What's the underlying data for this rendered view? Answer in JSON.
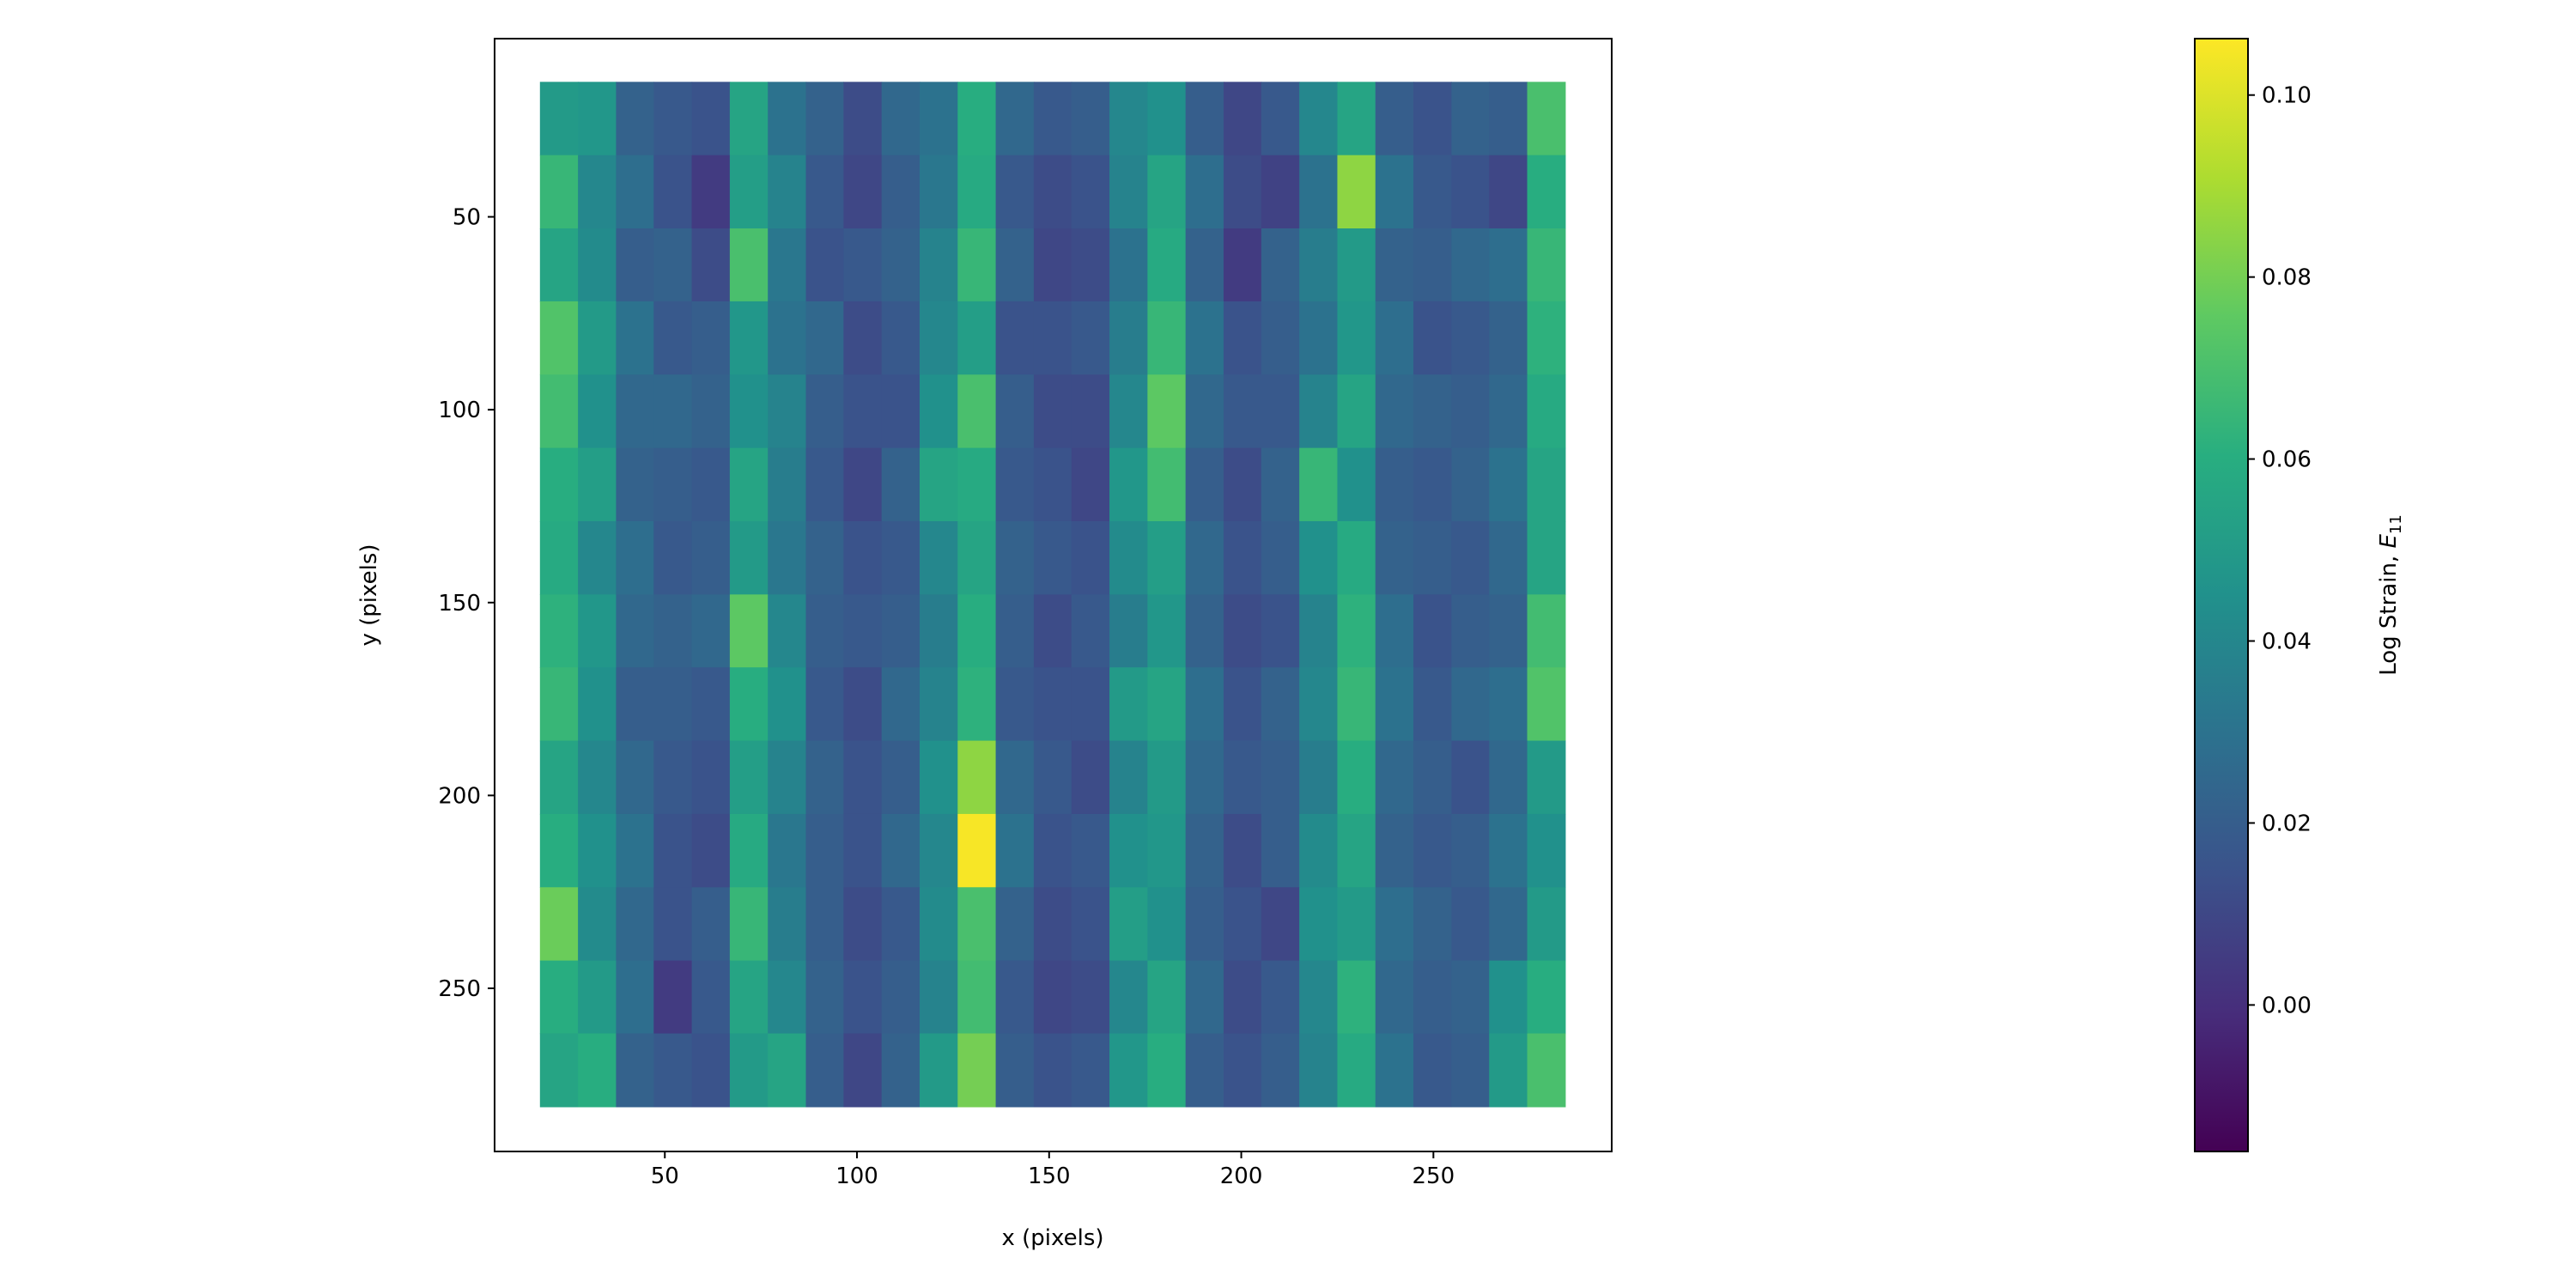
{
  "chart_data": {
    "type": "heatmap",
    "xlabel": "x (pixels)",
    "ylabel": "y (pixels)",
    "colorbar_label": "Log Strain, ",
    "colorbar_label_symbol": "E",
    "colorbar_label_subscript": "11",
    "colormap": "viridis",
    "xlim": [
      5.7,
      296.4
    ],
    "ylim": [
      292.3,
      3.8
    ],
    "xticks": [
      50,
      100,
      150,
      200,
      250
    ],
    "yticks": [
      50,
      100,
      150,
      200,
      250
    ],
    "clim": [
      -0.0161,
      0.1062
    ],
    "cticks": [
      {
        "value": 0,
        "label": "0.00"
      },
      {
        "value": 0.02,
        "label": "0.02"
      },
      {
        "value": 0.04,
        "label": "0.04"
      },
      {
        "value": 0.06,
        "label": "0.06"
      },
      {
        "value": 0.08,
        "label": "0.08"
      },
      {
        "value": 0.1,
        "label": "0.10"
      }
    ],
    "xbins": [
      17.5,
      27.4,
      37.3,
      47.1,
      57.0,
      66.9,
      76.8,
      86.7,
      96.5,
      106.4,
      116.3,
      126.2,
      136.1,
      146.0,
      155.8,
      165.7,
      175.6,
      185.5,
      195.4,
      205.2,
      215.1,
      225.0,
      234.9,
      244.8,
      254.7,
      264.5,
      274.4,
      284.3
    ],
    "ybins": [
      15,
      34,
      53,
      71.9,
      90.9,
      109.9,
      128.9,
      147.9,
      166.8,
      185.8,
      204.8,
      223.8,
      242.8,
      261.7,
      280.7
    ],
    "z": [
      [
        0.05,
        0.048,
        0.022,
        0.018,
        0.015,
        0.055,
        0.03,
        0.022,
        0.012,
        0.025,
        0.03,
        0.06,
        0.025,
        0.018,
        0.02,
        0.04,
        0.045,
        0.02,
        0.01,
        0.018,
        0.04,
        0.055,
        0.02,
        0.015,
        0.022,
        0.02,
        0.07
      ],
      [
        0.065,
        0.04,
        0.028,
        0.015,
        0.005,
        0.052,
        0.038,
        0.018,
        0.01,
        0.02,
        0.032,
        0.058,
        0.018,
        0.012,
        0.015,
        0.038,
        0.055,
        0.028,
        0.012,
        0.008,
        0.03,
        0.085,
        0.03,
        0.018,
        0.015,
        0.01,
        0.06
      ],
      [
        0.055,
        0.042,
        0.02,
        0.022,
        0.012,
        0.07,
        0.032,
        0.015,
        0.018,
        0.022,
        0.038,
        0.065,
        0.022,
        0.01,
        0.012,
        0.03,
        0.058,
        0.022,
        0.005,
        0.022,
        0.035,
        0.05,
        0.022,
        0.02,
        0.025,
        0.028,
        0.065
      ],
      [
        0.072,
        0.05,
        0.03,
        0.018,
        0.02,
        0.048,
        0.03,
        0.025,
        0.012,
        0.018,
        0.04,
        0.052,
        0.015,
        0.015,
        0.018,
        0.035,
        0.065,
        0.03,
        0.015,
        0.02,
        0.03,
        0.048,
        0.028,
        0.015,
        0.018,
        0.022,
        0.062
      ],
      [
        0.068,
        0.045,
        0.025,
        0.025,
        0.022,
        0.045,
        0.038,
        0.02,
        0.015,
        0.015,
        0.045,
        0.07,
        0.02,
        0.012,
        0.012,
        0.04,
        0.075,
        0.025,
        0.018,
        0.018,
        0.038,
        0.055,
        0.025,
        0.022,
        0.02,
        0.025,
        0.058
      ],
      [
        0.06,
        0.052,
        0.022,
        0.02,
        0.018,
        0.055,
        0.035,
        0.018,
        0.01,
        0.022,
        0.055,
        0.058,
        0.018,
        0.015,
        0.01,
        0.048,
        0.068,
        0.02,
        0.012,
        0.022,
        0.065,
        0.045,
        0.02,
        0.018,
        0.022,
        0.03,
        0.055
      ],
      [
        0.058,
        0.04,
        0.028,
        0.018,
        0.02,
        0.05,
        0.032,
        0.022,
        0.015,
        0.018,
        0.04,
        0.055,
        0.022,
        0.018,
        0.015,
        0.042,
        0.052,
        0.025,
        0.015,
        0.02,
        0.045,
        0.058,
        0.022,
        0.02,
        0.018,
        0.025,
        0.055
      ],
      [
        0.062,
        0.048,
        0.025,
        0.022,
        0.025,
        0.075,
        0.04,
        0.02,
        0.018,
        0.02,
        0.035,
        0.06,
        0.02,
        0.012,
        0.018,
        0.035,
        0.048,
        0.022,
        0.012,
        0.015,
        0.038,
        0.062,
        0.028,
        0.015,
        0.02,
        0.022,
        0.068
      ],
      [
        0.065,
        0.045,
        0.02,
        0.02,
        0.018,
        0.06,
        0.045,
        0.018,
        0.012,
        0.025,
        0.038,
        0.062,
        0.018,
        0.015,
        0.015,
        0.05,
        0.055,
        0.028,
        0.015,
        0.022,
        0.04,
        0.065,
        0.03,
        0.018,
        0.025,
        0.028,
        0.072
      ],
      [
        0.055,
        0.04,
        0.025,
        0.018,
        0.015,
        0.052,
        0.038,
        0.022,
        0.015,
        0.02,
        0.045,
        0.085,
        0.025,
        0.018,
        0.012,
        0.038,
        0.05,
        0.025,
        0.018,
        0.02,
        0.035,
        0.06,
        0.025,
        0.02,
        0.015,
        0.025,
        0.05
      ],
      [
        0.06,
        0.045,
        0.03,
        0.015,
        0.012,
        0.058,
        0.032,
        0.02,
        0.015,
        0.025,
        0.04,
        0.105,
        0.03,
        0.015,
        0.018,
        0.045,
        0.048,
        0.022,
        0.012,
        0.02,
        0.042,
        0.055,
        0.022,
        0.018,
        0.02,
        0.03,
        0.045
      ],
      [
        0.078,
        0.042,
        0.025,
        0.015,
        0.02,
        0.065,
        0.035,
        0.02,
        0.012,
        0.018,
        0.042,
        0.07,
        0.022,
        0.012,
        0.015,
        0.052,
        0.045,
        0.02,
        0.015,
        0.01,
        0.045,
        0.05,
        0.028,
        0.022,
        0.018,
        0.025,
        0.05
      ],
      [
        0.06,
        0.05,
        0.028,
        0.005,
        0.018,
        0.055,
        0.04,
        0.022,
        0.015,
        0.02,
        0.038,
        0.068,
        0.018,
        0.01,
        0.012,
        0.04,
        0.055,
        0.025,
        0.012,
        0.018,
        0.04,
        0.062,
        0.025,
        0.02,
        0.022,
        0.045,
        0.06
      ],
      [
        0.055,
        0.06,
        0.022,
        0.018,
        0.015,
        0.05,
        0.055,
        0.02,
        0.01,
        0.022,
        0.05,
        0.08,
        0.02,
        0.015,
        0.018,
        0.048,
        0.06,
        0.02,
        0.015,
        0.02,
        0.038,
        0.058,
        0.03,
        0.018,
        0.02,
        0.05,
        0.07
      ]
    ]
  }
}
